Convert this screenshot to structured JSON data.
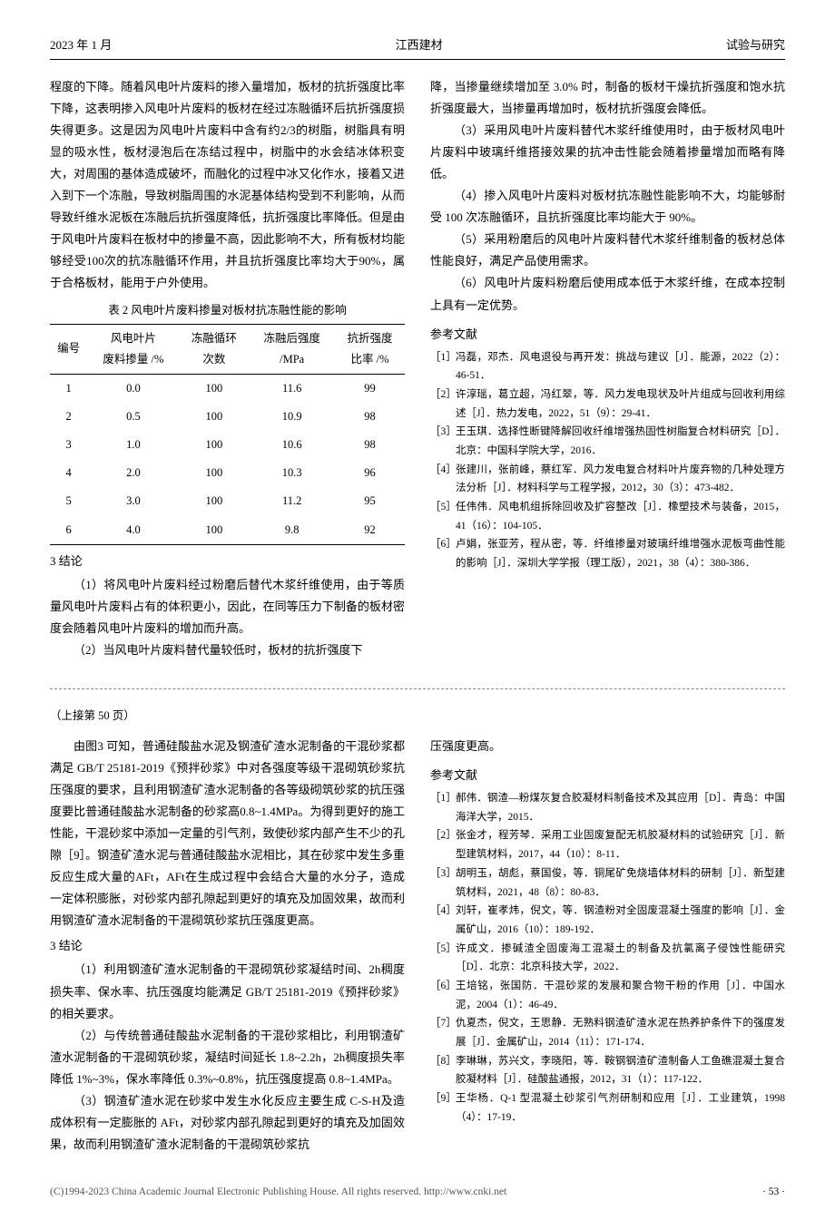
{
  "header": {
    "left": "2023 年 1 月",
    "center": "江西建材",
    "right": "试验与研究"
  },
  "leftCol": {
    "p1": "程度的下降。随着风电叶片废料的掺入量增加，板材的抗折强度比率下降，这表明掺入风电叶片废料的板材在经过冻融循环后抗折强度损失得更多。这是因为风电叶片废料中含有约2/3的树脂，树脂具有明显的吸水性，板材浸泡后在冻结过程中，树脂中的水会结冰体积变大，对周围的基体造成破坏，而融化的过程中冰又化作水，接着又进入到下一个冻融，导致树脂周围的水泥基体结构受到不利影响，从而导致纤维水泥板在冻融后抗折强度降低，抗折强度比率降低。但是由于风电叶片废料在板材中的掺量不高，因此影响不大，所有板材均能够经受100次的抗冻融循环作用，并且抗折强度比率均大于90%，属于合格板材，能用于户外使用。",
    "tableCaption": "表 2   风电叶片废料掺量对板材抗冻融性能的影响",
    "table": {
      "headers": [
        "编号",
        "风电叶片\n废料掺量 /%",
        "冻融循环\n次数",
        "冻融后强度\n/MPa",
        "抗折强度\n比率 /%"
      ],
      "rows": [
        [
          "1",
          "0.0",
          "100",
          "11.6",
          "99"
        ],
        [
          "2",
          "0.5",
          "100",
          "10.9",
          "98"
        ],
        [
          "3",
          "1.0",
          "100",
          "10.6",
          "98"
        ],
        [
          "4",
          "2.0",
          "100",
          "10.3",
          "96"
        ],
        [
          "5",
          "3.0",
          "100",
          "11.2",
          "95"
        ],
        [
          "6",
          "4.0",
          "100",
          "9.8",
          "92"
        ]
      ]
    },
    "sec3": "3   结论",
    "p2": "（1）将风电叶片废料经过粉磨后替代木浆纤维使用，由于等质量风电叶片废料占有的体积更小，因此，在同等压力下制备的板材密度会随着风电叶片废料的增加而升高。",
    "p3": "（2）当风电叶片废料替代量较低时，板材的抗折强度下"
  },
  "rightCol": {
    "p1": "降，当掺量继续增加至 3.0% 时，制备的板材干燥抗折强度和饱水抗折强度最大，当掺量再增加时，板材抗折强度会降低。",
    "p2": "（3）采用风电叶片废料替代木浆纤维使用时，由于板材风电叶片废料中玻璃纤维搭接效果的抗冲击性能会随着掺量增加而略有降低。",
    "p3": "（4）掺入风电叶片废料对板材抗冻融性能影响不大，均能够耐受 100 次冻融循环，且抗折强度比率均能大于 90%。",
    "p4": "（5）采用粉磨后的风电叶片废料替代木浆纤维制备的板材总体性能良好，满足产品使用需求。",
    "p5": "（6）风电叶片废料粉磨后使用成本低于木浆纤维，在成本控制上具有一定优势。",
    "refHead": "参考文献",
    "refs": [
      {
        "n": "［1］",
        "t": "冯磊，邓杰．风电退役与再开发：挑战与建议［J］．能源，2022（2）：46-51．"
      },
      {
        "n": "［2］",
        "t": "许淳瑶，葛立超，冯红翠，等．风力发电现状及叶片组成与回收利用综述［J］．热力发电，2022，51（9）：29-41．"
      },
      {
        "n": "［3］",
        "t": "王玉琪．选择性断键降解回收纤维增强热固性树脂复合材料研究［D］．北京：中国科学院大学，2016．"
      },
      {
        "n": "［4］",
        "t": "张建川，张前峰，蔡红军．风力发电复合材料叶片废弃物的几种处理方法分析［J］．材料科学与工程学报，2012，30（3）：473-482．"
      },
      {
        "n": "［5］",
        "t": "任伟伟．风电机组拆除回收及扩容整改［J］．橡塑技术与装备，2015，41（16）：104-105．"
      },
      {
        "n": "［6］",
        "t": "卢娟，张亚芳，程从密，等．纤维掺量对玻璃纤维增强水泥板弯曲性能的影响［J］．深圳大学学报（理工版），2021，38（4）：380-386．"
      }
    ]
  },
  "contNote": "（上接第 50 页）",
  "lower": {
    "left": {
      "p1": "由图3 可知，普通硅酸盐水泥及钢渣矿渣水泥制备的干混砂浆都满足 GB/T 25181-2019《预拌砂浆》中对各强度等级干混砌筑砂浆抗压强度的要求，且利用钢渣矿渣水泥制备的各等级砌筑砂浆的抗压强度要比普通硅酸盐水泥制备的砂浆高0.8~1.4MPa。为得到更好的施工性能，干混砂浆中添加一定量的引气剂，致使砂浆内部产生不少的孔隙［9］。钢渣矿渣水泥与普通硅酸盐水泥相比，其在砂浆中发生多重反应生成大量的AFt，AFt在生成过程中会结合大量的水分子，造成一定体积膨胀，对砂浆内部孔隙起到更好的填充及加固效果，故而利用钢渣矿渣水泥制备的干混砌筑砂浆抗压强度更高。",
      "sec3": "3   结论",
      "p2": "（1）利用钢渣矿渣水泥制备的干混砌筑砂浆凝结时间、2h稠度损失率、保水率、抗压强度均能满足 GB/T 25181-2019《预拌砂浆》的相关要求。",
      "p3": "（2）与传统普通硅酸盐水泥制备的干混砂浆相比，利用钢渣矿渣水泥制备的干混砌筑砂浆，凝结时间延长 1.8~2.2h，2h稠度损失率降低 1%~3%，保水率降低 0.3%~0.8%，抗压强度提高 0.8~1.4MPa。",
      "p4": "（3）钢渣矿渣水泥在砂浆中发生水化反应主要生成 C-S-H及造成体积有一定膨胀的 AFt，对砂浆内部孔隙起到更好的填充及加固效果，故而利用钢渣矿渣水泥制备的干混砌筑砂浆抗"
    },
    "right": {
      "p1": "压强度更高。",
      "refHead": "参考文献",
      "refs": [
        {
          "n": "［1］",
          "t": "郝伟．钢渣—粉煤灰复合胶凝材料制备技术及其应用［D］．青岛：中国海洋大学，2015．"
        },
        {
          "n": "［2］",
          "t": "张金才，程芳琴．采用工业固废复配无机胶凝材料的试验研究［J］．新型建筑材料，2017，44（10）：8-11．"
        },
        {
          "n": "［3］",
          "t": "胡明玉，胡彪，蔡国俊，等．铜尾矿免烧墙体材料的研制［J］．新型建筑材料，2021，48（8）：80-83．"
        },
        {
          "n": "［4］",
          "t": "刘轩，崔孝炜，倪文，等．钢渣粉对全固废混凝土强度的影响［J］．金属矿山，2016（10）：189-192．"
        },
        {
          "n": "［5］",
          "t": "许成文．掺碱渣全固废海工混凝土的制备及抗氯离子侵蚀性能研究［D］．北京：北京科技大学，2022．"
        },
        {
          "n": "［6］",
          "t": "王培铭，张国防．干混砂浆的发展和聚合物干粉的作用［J］．中国水泥，2004（1）：46-49．"
        },
        {
          "n": "［7］",
          "t": "仇夏杰，倪文，王思静．无熟料钢渣矿渣水泥在热养护条件下的强度发展［J］．金属矿山，2014（11）：171-174．"
        },
        {
          "n": "［8］",
          "t": "李琳琳，苏兴文，李晓阳，等．鞍钢钢渣矿渣制备人工鱼礁混凝土复合胶凝材料［J］．硅酸盐通报，2012，31（1）：117-122．"
        },
        {
          "n": "［9］",
          "t": "王华杨．Q-1 型混凝土砂浆引气剂研制和应用［J］．工业建筑，1998（4）：17-19．"
        }
      ]
    }
  },
  "footer": {
    "left": "(C)1994-2023 China Academic Journal Electronic Publishing House. All rights reserved.   http://www.cnki.net",
    "right": "· 53 ·"
  }
}
